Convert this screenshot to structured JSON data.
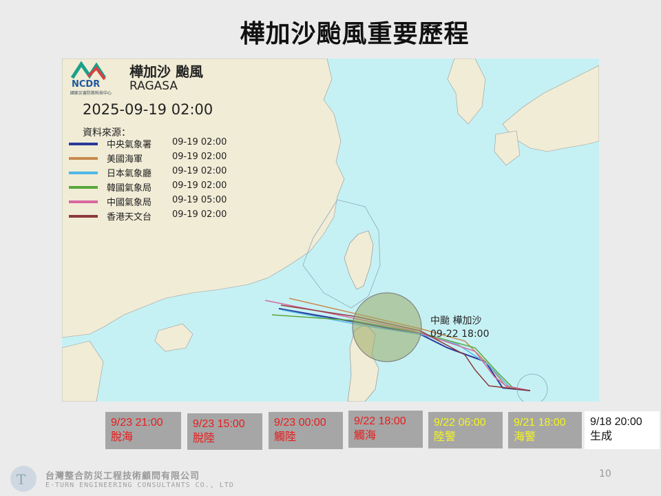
{
  "title": "樺加沙颱風重要歷程",
  "map": {
    "logo_text": "NCDR",
    "logo_subtext": "國家災害防救科技中心",
    "storm_name_cn": "樺加沙 颱風",
    "storm_name_en": "RAGASA",
    "datetime": "2025-09-19 02:00",
    "source_label": "資料來源：",
    "sources": [
      {
        "name": "中央氣象署",
        "time": "09-19 02:00",
        "color": "#2b3a9a"
      },
      {
        "name": "美國海軍",
        "time": "09-19 02:00",
        "color": "#c98a4e"
      },
      {
        "name": "日本氣象廳",
        "time": "09-19 02:00",
        "color": "#4fb8e6"
      },
      {
        "name": "韓國氣象局",
        "time": "09-19 02:00",
        "color": "#5aa83a"
      },
      {
        "name": "中國氣象局",
        "time": "09-19 05:00",
        "color": "#d868a0"
      },
      {
        "name": "香港天文台",
        "time": "09-19 02:00",
        "color": "#8e3a3a"
      }
    ],
    "annotation_line1": "中颱 樺加沙",
    "annotation_line2": "09-22 18:00"
  },
  "milestones": [
    {
      "time": "9/23 21:00",
      "label": "脫海",
      "color": "red"
    },
    {
      "time": "9/23 15:00",
      "label": "脫陸",
      "color": "red"
    },
    {
      "time": "9/23 00:00",
      "label": "觸陸",
      "color": "red"
    },
    {
      "time": "9/22 18:00",
      "label": "觸海",
      "color": "red"
    },
    {
      "time": "9/22 06:00",
      "label": "陸警",
      "color": "yellow"
    },
    {
      "time": "9/21 18:00",
      "label": "海警",
      "color": "yellow"
    },
    {
      "time": "9/18 20:00",
      "label": "生成",
      "color": "black"
    }
  ],
  "footer": {
    "company_cn": "台灣整合防災工程技術顧問有限公司",
    "company_en": "E-TURN ENGINEERING CONSULTANTS CO., LTD",
    "page_number": "10"
  }
}
